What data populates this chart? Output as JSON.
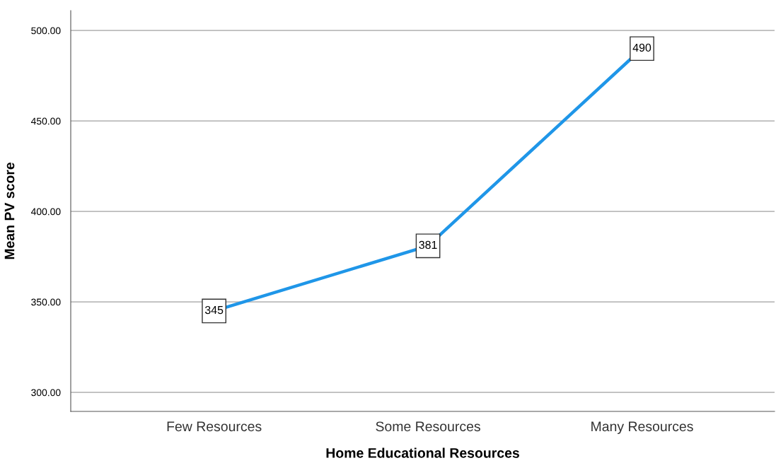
{
  "chart_data": {
    "type": "line",
    "xlabel": "Home Educational Resources",
    "ylabel": "Mean PV score",
    "categories": [
      "Few Resources",
      "Some Resources",
      "Many Resources"
    ],
    "series": [
      {
        "color": "#1f96e8",
        "values": [
          345,
          381,
          490
        ]
      }
    ],
    "ylim": [
      289.5,
      511
    ],
    "yticks": [
      {
        "value": 300,
        "label": "300.00"
      },
      {
        "value": 350,
        "label": "350.00"
      },
      {
        "value": 400,
        "label": "400.00"
      },
      {
        "value": 450,
        "label": "450.00"
      },
      {
        "value": 500,
        "label": "500.00"
      }
    ],
    "grid": "y",
    "data_labels": true,
    "marker": "square",
    "line_style": "solid"
  }
}
